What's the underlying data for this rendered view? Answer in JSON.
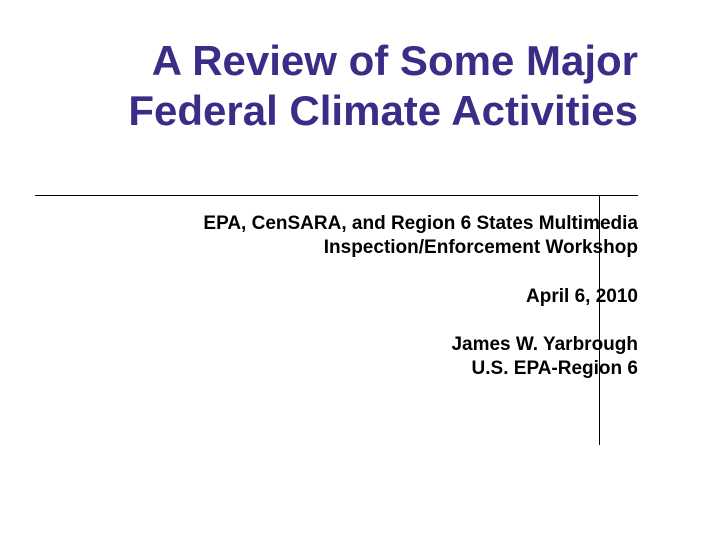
{
  "slide": {
    "title": "A Review of Some Major Federal Climate Activities",
    "subtitle_line1": "EPA, CenSARA, and Region 6 States Multimedia",
    "subtitle_line2": "Inspection/Enforcement Workshop",
    "date": "April 6, 2010",
    "presenter": "James W. Yarbrough",
    "organization": "U.S. EPA-Region 6"
  },
  "styling": {
    "title_color": "#3b2c87",
    "subtitle_color": "#000000",
    "title_fontsize": 42,
    "subtitle_fontsize": 19,
    "background_color": "#ffffff",
    "divider_color": "#000000",
    "vertical_line_right": 599,
    "title_font_weight": "bold",
    "subtitle_font_weight": "bold"
  }
}
